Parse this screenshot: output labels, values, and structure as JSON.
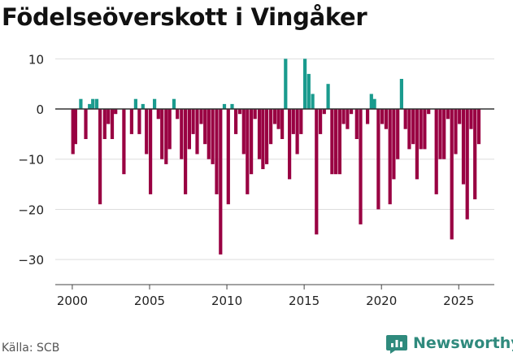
{
  "title": "Födelseöverskott i Vingåker",
  "source": "Källa: SCB",
  "brand": "Newsworthy",
  "colors": {
    "positive": "#1a9b8e",
    "negative": "#990042",
    "grid": "#dddddd",
    "axis": "#333333",
    "brand": "#2f8a7d"
  },
  "chart_data": {
    "type": "bar",
    "title": "Födelseöverskott i Vingåker",
    "xlabel": "",
    "ylabel": "",
    "frequency": "monthly (every 4th bar-slot approximated)",
    "x_ticks": [
      2000,
      2005,
      2010,
      2015,
      2020,
      2025
    ],
    "y_ticks": [
      10,
      0,
      -10,
      -20,
      -30
    ],
    "ylim": [
      -35,
      12
    ],
    "xlim": [
      1998.9,
      2027.3
    ],
    "grid": "horizontal",
    "series": [
      {
        "name": "Födelseöverskott",
        "points": [
          {
            "x": 2000.04,
            "value": -9
          },
          {
            "x": 2000.21,
            "value": -7
          },
          {
            "x": 2000.55,
            "value": 2
          },
          {
            "x": 2000.87,
            "value": -6
          },
          {
            "x": 2001.12,
            "value": 1
          },
          {
            "x": 2001.33,
            "value": 2
          },
          {
            "x": 2001.58,
            "value": 2
          },
          {
            "x": 2001.8,
            "value": -19
          },
          {
            "x": 2002.1,
            "value": -6
          },
          {
            "x": 2002.33,
            "value": -3
          },
          {
            "x": 2002.58,
            "value": -6
          },
          {
            "x": 2002.8,
            "value": -1
          },
          {
            "x": 2003.34,
            "value": -13
          },
          {
            "x": 2003.84,
            "value": -5
          },
          {
            "x": 2004.1,
            "value": 2
          },
          {
            "x": 2004.34,
            "value": -5
          },
          {
            "x": 2004.57,
            "value": 1
          },
          {
            "x": 2004.8,
            "value": -9
          },
          {
            "x": 2005.06,
            "value": -17
          },
          {
            "x": 2005.32,
            "value": 2
          },
          {
            "x": 2005.57,
            "value": -2
          },
          {
            "x": 2005.8,
            "value": -10
          },
          {
            "x": 2006.07,
            "value": -11
          },
          {
            "x": 2006.3,
            "value": -8
          },
          {
            "x": 2006.58,
            "value": 2
          },
          {
            "x": 2006.8,
            "value": -2
          },
          {
            "x": 2007.07,
            "value": -10
          },
          {
            "x": 2007.32,
            "value": -17
          },
          {
            "x": 2007.57,
            "value": -8
          },
          {
            "x": 2007.82,
            "value": -5
          },
          {
            "x": 2008.08,
            "value": -9
          },
          {
            "x": 2008.34,
            "value": -3
          },
          {
            "x": 2008.59,
            "value": -7
          },
          {
            "x": 2008.83,
            "value": -10
          },
          {
            "x": 2009.08,
            "value": -11
          },
          {
            "x": 2009.34,
            "value": -17
          },
          {
            "x": 2009.59,
            "value": -29
          },
          {
            "x": 2009.84,
            "value": 1
          },
          {
            "x": 2010.09,
            "value": -19
          },
          {
            "x": 2010.34,
            "value": 1
          },
          {
            "x": 2010.58,
            "value": -5
          },
          {
            "x": 2010.84,
            "value": -1
          },
          {
            "x": 2011.09,
            "value": -9
          },
          {
            "x": 2011.33,
            "value": -17
          },
          {
            "x": 2011.58,
            "value": -13
          },
          {
            "x": 2011.82,
            "value": -2
          },
          {
            "x": 2012.1,
            "value": -10
          },
          {
            "x": 2012.33,
            "value": -12
          },
          {
            "x": 2012.58,
            "value": -11
          },
          {
            "x": 2012.84,
            "value": -7
          },
          {
            "x": 2013.1,
            "value": -3
          },
          {
            "x": 2013.34,
            "value": -4
          },
          {
            "x": 2013.58,
            "value": -6
          },
          {
            "x": 2013.8,
            "value": 10
          },
          {
            "x": 2014.05,
            "value": -14
          },
          {
            "x": 2014.3,
            "value": -5
          },
          {
            "x": 2014.55,
            "value": -9
          },
          {
            "x": 2014.8,
            "value": -5
          },
          {
            "x": 2015.05,
            "value": 10
          },
          {
            "x": 2015.3,
            "value": 7
          },
          {
            "x": 2015.55,
            "value": 3
          },
          {
            "x": 2015.8,
            "value": -25
          },
          {
            "x": 2016.05,
            "value": -5
          },
          {
            "x": 2016.3,
            "value": -1
          },
          {
            "x": 2016.55,
            "value": 5
          },
          {
            "x": 2016.8,
            "value": -13
          },
          {
            "x": 2017.05,
            "value": -13
          },
          {
            "x": 2017.3,
            "value": -13
          },
          {
            "x": 2017.55,
            "value": -3
          },
          {
            "x": 2017.8,
            "value": -4
          },
          {
            "x": 2018.05,
            "value": -1
          },
          {
            "x": 2018.4,
            "value": -6
          },
          {
            "x": 2018.65,
            "value": -23
          },
          {
            "x": 2019.1,
            "value": -3
          },
          {
            "x": 2019.35,
            "value": 3
          },
          {
            "x": 2019.55,
            "value": 2
          },
          {
            "x": 2019.8,
            "value": -20
          },
          {
            "x": 2020.05,
            "value": -3
          },
          {
            "x": 2020.3,
            "value": -4
          },
          {
            "x": 2020.55,
            "value": -19
          },
          {
            "x": 2020.8,
            "value": -14
          },
          {
            "x": 2021.05,
            "value": -10
          },
          {
            "x": 2021.3,
            "value": 6
          },
          {
            "x": 2021.55,
            "value": -4
          },
          {
            "x": 2021.8,
            "value": -8
          },
          {
            "x": 2022.05,
            "value": -7
          },
          {
            "x": 2022.3,
            "value": -14
          },
          {
            "x": 2022.55,
            "value": -8
          },
          {
            "x": 2022.8,
            "value": -8
          },
          {
            "x": 2023.05,
            "value": -1
          },
          {
            "x": 2023.55,
            "value": -17
          },
          {
            "x": 2023.8,
            "value": -10
          },
          {
            "x": 2024.05,
            "value": -10
          },
          {
            "x": 2024.3,
            "value": -2
          },
          {
            "x": 2024.55,
            "value": -26
          },
          {
            "x": 2024.8,
            "value": -9
          },
          {
            "x": 2025.05,
            "value": -3
          },
          {
            "x": 2025.3,
            "value": -15
          },
          {
            "x": 2025.55,
            "value": -22
          },
          {
            "x": 2025.8,
            "value": -4
          },
          {
            "x": 2026.05,
            "value": -18
          },
          {
            "x": 2026.3,
            "value": -7
          }
        ]
      }
    ]
  }
}
